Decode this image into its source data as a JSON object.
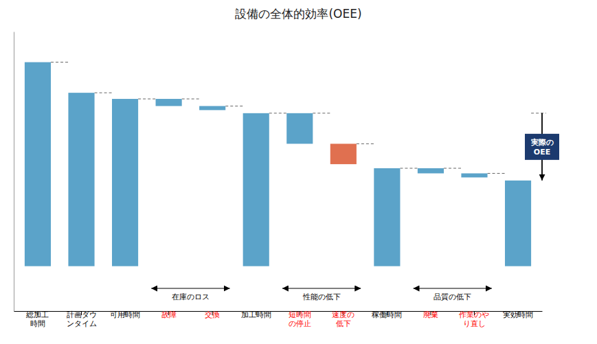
{
  "chart_data": {
    "type": "bar",
    "title": "設備の全体的効率(OEE)",
    "categories": [
      "総加工\n時間",
      "計画ダウ\nンタイム",
      "可用時間",
      "故障",
      "交換",
      "加工時間",
      "短時間\nの停止",
      "速度の\n低下",
      "稼働時間",
      "廃棄",
      "作業のや\nり直し",
      "実効時間"
    ],
    "values": [
      10.0,
      8.5,
      8.2,
      0.35,
      0.2,
      7.5,
      1.5,
      1.0,
      4.8,
      0.25,
      0.2,
      4.2
    ],
    "bottoms": [
      0.0,
      0.0,
      0.0,
      7.85,
      7.65,
      0.0,
      6.0,
      5.0,
      0.0,
      4.55,
      4.35,
      0.0
    ],
    "colors": [
      "#5BA3C9",
      "#5BA3C9",
      "#5BA3C9",
      "#5BA3C9",
      "#5BA3C9",
      "#5BA3C9",
      "#5BA3C9",
      "#E07050",
      "#5BA3C9",
      "#5BA3C9",
      "#5BA3C9",
      "#5BA3C9"
    ],
    "category_colors": [
      "black",
      "black",
      "black",
      "red",
      "red",
      "black",
      "red",
      "red",
      "black",
      "red",
      "red",
      "black"
    ],
    "ylim": [
      -2.2,
      11.5
    ],
    "yticks": [],
    "tick_labels": "x",
    "grid": false,
    "groups": [
      {
        "label": "在庫のロス",
        "categories": [
          "故障",
          "交換"
        ]
      },
      {
        "label": "性能の低下",
        "categories": [
          "短時間\nの停止",
          "速度の\n低下"
        ]
      },
      {
        "label": "品質の低下",
        "categories": [
          "廃棄",
          "作業のや\nり直し"
        ]
      }
    ],
    "annotation": {
      "text": "実際の\nOEE",
      "color": "#1C3A6E",
      "from": "加工時間",
      "to": "実効時間"
    }
  }
}
